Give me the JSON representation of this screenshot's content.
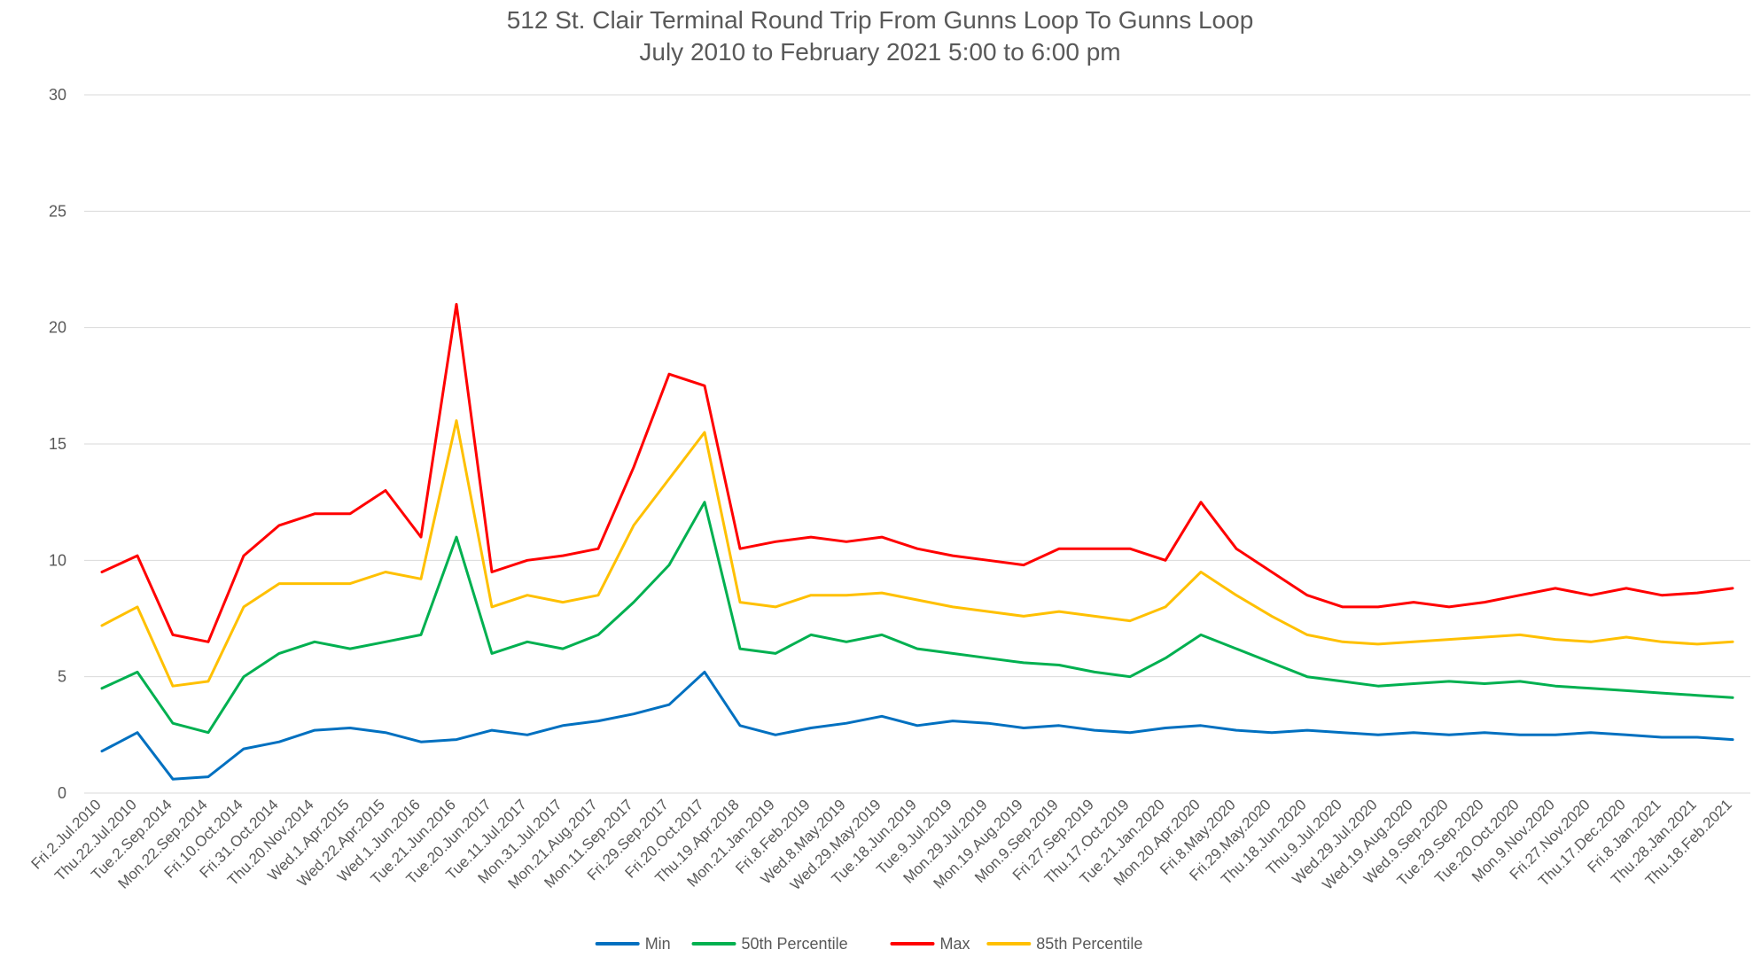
{
  "chart_data": {
    "type": "line",
    "title": "512 St. Clair Terminal Round Trip From Gunns Loop To Gunns Loop",
    "subtitle": "July 2010 to February 2021 5:00 to 6:00 pm",
    "xlabel": "",
    "ylabel": "",
    "ylim": [
      0,
      30
    ],
    "yticks": [
      0,
      5,
      10,
      15,
      20,
      25,
      30
    ],
    "grid": true,
    "legend_position": "bottom",
    "categories": [
      "Fri.2.Jul.2010",
      "Thu.22.Jul.2010",
      "Tue.2.Sep.2014",
      "Mon.22.Sep.2014",
      "Fri.10.Oct.2014",
      "Fri.31.Oct.2014",
      "Thu.20.Nov.2014",
      "Wed.1.Apr.2015",
      "Wed.22.Apr.2015",
      "Wed.1.Jun.2016",
      "Tue.21.Jun.2016",
      "Tue.20.Jun.2017",
      "Tue.11.Jul.2017",
      "Mon.31.Jul.2017",
      "Mon.21.Aug.2017",
      "Mon.11.Sep.2017",
      "Fri.29.Sep.2017",
      "Fri.20.Oct.2017",
      "Thu.19.Apr.2018",
      "Mon.21.Jan.2019",
      "Fri.8.Feb.2019",
      "Wed.8.May.2019",
      "Wed.29.May.2019",
      "Tue.18.Jun.2019",
      "Tue.9.Jul.2019",
      "Mon.29.Jul.2019",
      "Mon.19.Aug.2019",
      "Mon.9.Sep.2019",
      "Fri.27.Sep.2019",
      "Thu.17.Oct.2019",
      "Tue.21.Jan.2020",
      "Mon.20.Apr.2020",
      "Fri.8.May.2020",
      "Fri.29.May.2020",
      "Thu.18.Jun.2020",
      "Thu.9.Jul.2020",
      "Wed.29.Jul.2020",
      "Wed.19.Aug.2020",
      "Wed.9.Sep.2020",
      "Tue.29.Sep.2020",
      "Tue.20.Oct.2020",
      "Mon.9.Nov.2020",
      "Fri.27.Nov.2020",
      "Thu.17.Dec.2020",
      "Fri.8.Jan.2021",
      "Thu.28.Jan.2021",
      "Thu.18.Feb.2021"
    ],
    "series": [
      {
        "name": "Min",
        "color": "#0070c0",
        "values": [
          1.8,
          2.6,
          0.6,
          0.7,
          1.9,
          2.2,
          2.7,
          2.8,
          2.6,
          2.2,
          2.3,
          2.7,
          2.5,
          2.9,
          3.1,
          3.4,
          3.8,
          5.2,
          2.9,
          2.5,
          2.8,
          3.0,
          3.3,
          2.9,
          3.1,
          3.0,
          2.8,
          2.9,
          2.7,
          2.6,
          2.8,
          2.9,
          2.7,
          2.6,
          2.7,
          2.6,
          2.5,
          2.6,
          2.5,
          2.6,
          2.5,
          2.5,
          2.6,
          2.5,
          2.4,
          2.4,
          2.3
        ]
      },
      {
        "name": "50th Percentile",
        "color": "#00b050",
        "values": [
          4.5,
          5.2,
          3.0,
          2.6,
          5.0,
          6.0,
          6.5,
          6.2,
          6.5,
          6.8,
          11.0,
          6.0,
          6.5,
          6.2,
          6.8,
          8.2,
          9.8,
          12.5,
          6.2,
          6.0,
          6.8,
          6.5,
          6.8,
          6.2,
          6.0,
          5.8,
          5.6,
          5.5,
          5.2,
          5.0,
          5.8,
          6.8,
          6.2,
          5.6,
          5.0,
          4.8,
          4.6,
          4.7,
          4.8,
          4.7,
          4.8,
          4.6,
          4.5,
          4.4,
          4.3,
          4.2,
          4.1
        ]
      },
      {
        "name": "Max",
        "color": "#ff0000",
        "values": [
          9.5,
          10.2,
          6.8,
          6.5,
          10.2,
          11.5,
          12.0,
          12.0,
          13.0,
          11.0,
          21.0,
          9.5,
          10.0,
          10.2,
          10.5,
          14.0,
          18.0,
          17.5,
          10.5,
          10.8,
          11.0,
          10.8,
          11.0,
          10.5,
          10.2,
          10.0,
          9.8,
          10.5,
          10.5,
          10.5,
          10.0,
          12.5,
          10.5,
          9.5,
          8.5,
          8.0,
          8.0,
          8.2,
          8.0,
          8.2,
          8.5,
          8.8,
          8.5,
          8.8,
          8.5,
          8.6,
          8.8
        ]
      },
      {
        "name": "85th Percentile",
        "color": "#ffc000",
        "values": [
          7.2,
          8.0,
          4.6,
          4.8,
          8.0,
          9.0,
          9.0,
          9.0,
          9.5,
          9.2,
          16.0,
          8.0,
          8.5,
          8.2,
          8.5,
          11.5,
          13.5,
          15.5,
          8.2,
          8.0,
          8.5,
          8.5,
          8.6,
          8.3,
          8.0,
          7.8,
          7.6,
          7.8,
          7.6,
          7.4,
          8.0,
          9.5,
          8.5,
          7.6,
          6.8,
          6.5,
          6.4,
          6.5,
          6.6,
          6.7,
          6.8,
          6.6,
          6.5,
          6.7,
          6.5,
          6.4,
          6.5
        ]
      }
    ]
  }
}
